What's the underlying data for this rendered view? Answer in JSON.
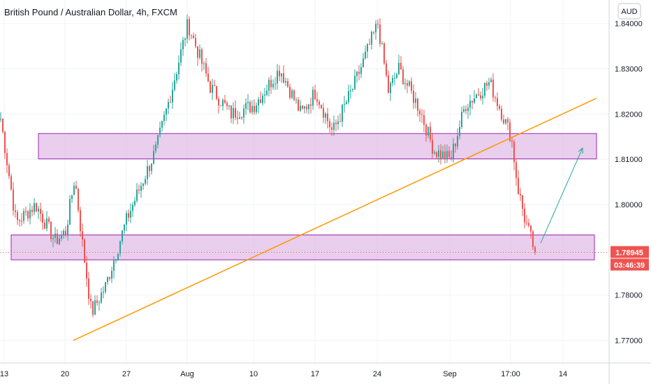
{
  "chart_data": {
    "type": "candlestick",
    "title": "British Pound / Australian Dollar, 4h, FXCM",
    "currency": "AUD",
    "ylim": [
      1.765,
      1.8452
    ],
    "yticks": [
      "1.84000",
      "1.83000",
      "1.82000",
      "1.81000",
      "1.80000",
      "1.79000",
      "1.78000",
      "1.77000"
    ],
    "yvalues": [
      1.84,
      1.83,
      1.82,
      1.81,
      1.8,
      1.79,
      1.78,
      1.77
    ],
    "xticks": [
      "13",
      "20",
      "27",
      "Aug",
      "10",
      "17",
      "24",
      "Sep",
      "17:00",
      "14"
    ],
    "last_price": "1.78945",
    "countdown": "03:46:39",
    "up_color": "#26a69a",
    "down_color": "#ef5350",
    "zone_fill": "#e1bee7",
    "zone_border": "#9c27b0",
    "trendline_color": "#ff9800",
    "arrow_color": "#26a69a",
    "price_path": [
      {
        "x": "13",
        "y": 1.819
      },
      {
        "x": "",
        "y": 1.796
      },
      {
        "x": "",
        "y": 1.8
      },
      {
        "x": "",
        "y": 1.792
      },
      {
        "x": "20",
        "y": 1.794
      },
      {
        "x": "",
        "y": 1.806
      },
      {
        "x": "",
        "y": 1.79
      },
      {
        "x": "",
        "y": 1.776
      },
      {
        "x": "",
        "y": 1.782
      },
      {
        "x": "27",
        "y": 1.797
      },
      {
        "x": "",
        "y": 1.804
      },
      {
        "x": "",
        "y": 1.812
      },
      {
        "x": "",
        "y": 1.826
      },
      {
        "x": "Aug",
        "y": 1.84
      },
      {
        "x": "",
        "y": 1.826
      },
      {
        "x": "",
        "y": 1.82
      },
      {
        "x": "10",
        "y": 1.822
      },
      {
        "x": "",
        "y": 1.83
      },
      {
        "x": "",
        "y": 1.82
      },
      {
        "x": "17",
        "y": 1.825
      },
      {
        "x": "",
        "y": 1.816
      },
      {
        "x": "",
        "y": 1.826
      },
      {
        "x": "24",
        "y": 1.84
      },
      {
        "x": "",
        "y": 1.825
      },
      {
        "x": "",
        "y": 1.83
      },
      {
        "x": "",
        "y": 1.821
      },
      {
        "x": "",
        "y": 1.812
      },
      {
        "x": "Sep",
        "y": 1.81
      },
      {
        "x": "",
        "y": 1.822
      },
      {
        "x": "",
        "y": 1.827
      },
      {
        "x": "17:00",
        "y": 1.815
      },
      {
        "x": "",
        "y": 1.804
      },
      {
        "x": "",
        "y": 1.797
      },
      {
        "x": "",
        "y": 1.7895
      }
    ],
    "zones": [
      {
        "top": 1.8157,
        "bottom": 1.8101
      },
      {
        "top": 1.7933,
        "bottom": 1.7878
      }
    ],
    "trendline": {
      "start": {
        "x": "20",
        "y": 1.77
      },
      "end": {
        "x": "14",
        "y": 1.8235
      }
    },
    "arrow": {
      "start": {
        "x": "17:00",
        "y": 1.7915
      },
      "end": {
        "x": "",
        "y": 1.8125
      }
    }
  }
}
